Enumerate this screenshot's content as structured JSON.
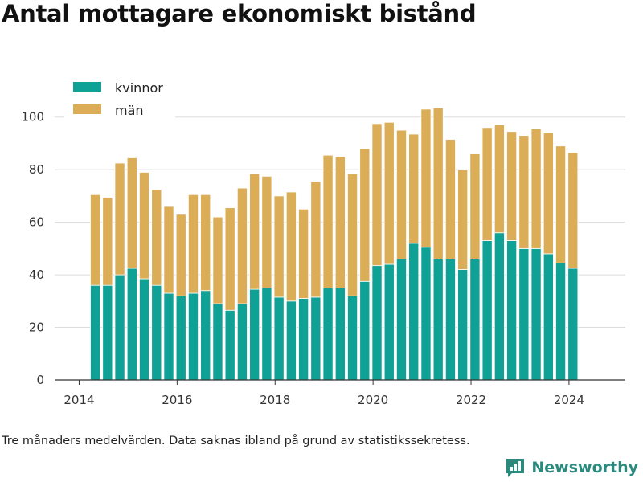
{
  "title": "Antal mottagare ekonomiskt bistånd",
  "footnote": "Tre månaders medelvärden. Data saknas ibland på grund av statistikssekretess.",
  "brand": {
    "name": "Newsworthy",
    "icon": "bar-chart-logo-icon"
  },
  "colors": {
    "kvinnor": "#0fa195",
    "man": "#dcad57",
    "grid": "#dddddd",
    "axis": "#333333",
    "brand": "#2a8a7e"
  },
  "chart_data": {
    "type": "bar",
    "stacked": true,
    "title": "Antal mottagare ekonomiskt bistånd",
    "xlabel": "",
    "ylabel": "",
    "xlim": [
      2013.5,
      2025.15
    ],
    "ylim": [
      0,
      110
    ],
    "grid": true,
    "legend_position": "top-left",
    "x_ticks": [
      {
        "value": 2014,
        "label": "2014"
      },
      {
        "value": 2016,
        "label": "2016"
      },
      {
        "value": 2018,
        "label": "2018"
      },
      {
        "value": 2020,
        "label": "2020"
      },
      {
        "value": 2022,
        "label": "2022"
      },
      {
        "value": 2024,
        "label": "2024"
      }
    ],
    "y_ticks": [
      {
        "value": 0,
        "label": "0"
      },
      {
        "value": 20,
        "label": "20"
      },
      {
        "value": 40,
        "label": "40"
      },
      {
        "value": 60,
        "label": "60"
      },
      {
        "value": 80,
        "label": "80"
      },
      {
        "value": 100,
        "label": "100"
      }
    ],
    "x": [
      2014.33,
      2014.58,
      2014.83,
      2015.08,
      2015.33,
      2015.58,
      2015.83,
      2016.08,
      2016.33,
      2016.58,
      2016.83,
      2017.08,
      2017.33,
      2017.58,
      2017.83,
      2018.08,
      2018.33,
      2018.58,
      2018.83,
      2019.08,
      2019.33,
      2019.58,
      2019.83,
      2020.08,
      2020.33,
      2020.58,
      2020.83,
      2021.08,
      2021.33,
      2021.58,
      2021.83,
      2022.08,
      2022.33,
      2022.58,
      2022.83,
      2023.08,
      2023.33,
      2023.58,
      2023.83,
      2024.08
    ],
    "series": [
      {
        "name": "kvinnor",
        "values": [
          36,
          36,
          40,
          42.5,
          38.5,
          36,
          33,
          32,
          33,
          34,
          29,
          26.5,
          29,
          34.5,
          35,
          31.5,
          30,
          31,
          31.5,
          35,
          35,
          32,
          37.5,
          43.5,
          44,
          46,
          52,
          50.5,
          46,
          46,
          42,
          46,
          53,
          56,
          53,
          50,
          50,
          48,
          44.5,
          42.5
        ]
      },
      {
        "name": "män",
        "values": [
          34.5,
          33.5,
          42.5,
          42,
          40.5,
          36.5,
          33,
          31,
          37.5,
          36.5,
          33,
          39,
          44,
          44,
          42.5,
          38.5,
          41.5,
          34,
          44,
          50.5,
          50,
          46.5,
          50.5,
          54,
          54,
          49,
          41.5,
          52.5,
          57.5,
          45.5,
          38,
          40,
          43,
          41,
          41.5,
          43,
          45.5,
          46,
          44.5,
          44
        ]
      }
    ]
  }
}
